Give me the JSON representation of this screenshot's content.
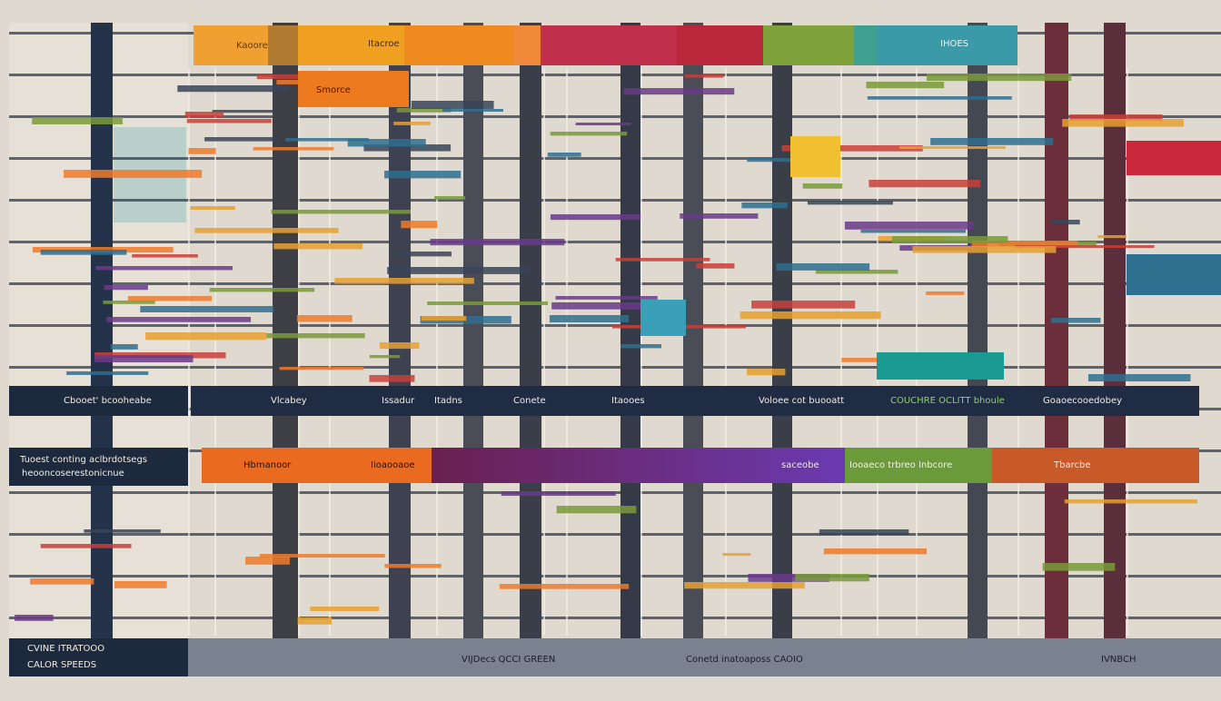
{
  "header": {
    "tabs": [
      "Kaoore",
      "Itacroe",
      "IHOES"
    ]
  },
  "row": {
    "tab": "Smorce"
  },
  "toolbar": {
    "title": "Cbooet' bcooheabe",
    "items": [
      "Vlcabey",
      "Issadur",
      "Itadns",
      "Conete",
      "Itaooes",
      "Voloee cot buooatt",
      "COUCHRE OCLITT bhoule",
      "Goaoecooedobey"
    ]
  },
  "banner": {
    "title": "Tuoest conting aclbrdotsegs",
    "subtitle": "heooncoserestonicnue",
    "segments": [
      "Hbmanoor",
      "Iioaooaoe",
      "saceobe",
      "Iooaeco trbreo Inbcore",
      "Tbarcbe"
    ]
  },
  "footer": {
    "subtitle": "CVINE ITRATOOO",
    "title": "CALOR SPEEDS",
    "items": [
      "VIJDecs QCCI GREEN",
      "Conetd inatoaposs CAOIO",
      "IVNBCH"
    ]
  }
}
